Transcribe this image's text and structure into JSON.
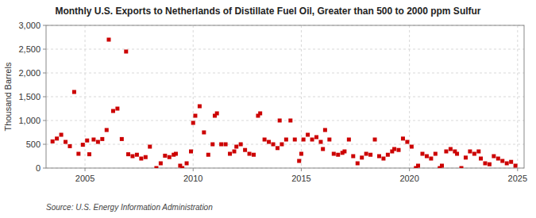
{
  "chart_data": {
    "type": "scatter",
    "title": "Monthly U.S. Exports to Netherlands of Distillate Fuel Oil, Greater than 500 to 2000 ppm Sulfur",
    "ylabel": "Thousand Barrels",
    "source": "Source: U.S. Energy Information Administration",
    "color": "#cc0000",
    "marker": "square",
    "grid": true,
    "xlim": [
      2003.2,
      2025.3
    ],
    "ylim": [
      0,
      3000
    ],
    "xticks": [
      2005,
      2010,
      2015,
      2020,
      2025
    ],
    "yticks": [
      0,
      500,
      {
        "value": 1000,
        "label": "1,000"
      },
      {
        "value": 1500,
        "label": "1,500"
      },
      {
        "value": 2000,
        "label": "2,000"
      },
      {
        "value": 2500,
        "label": "2,500"
      },
      {
        "value": 3000,
        "label": "3,000"
      }
    ],
    "x": [
      2003.5,
      2003.7,
      2003.9,
      2004.1,
      2004.3,
      2004.5,
      2004.7,
      2004.9,
      2005.1,
      2005.2,
      2005.4,
      2005.6,
      2005.8,
      2006.0,
      2006.1,
      2006.3,
      2006.5,
      2006.7,
      2006.9,
      2007.0,
      2007.2,
      2007.4,
      2007.6,
      2007.8,
      2008.0,
      2008.3,
      2008.5,
      2008.7,
      2008.9,
      2009.1,
      2009.2,
      2009.4,
      2009.5,
      2009.7,
      2009.9,
      2010.0,
      2010.1,
      2010.3,
      2010.5,
      2010.7,
      2010.9,
      2011.0,
      2011.1,
      2011.3,
      2011.5,
      2011.7,
      2011.9,
      2012.0,
      2012.2,
      2012.4,
      2012.6,
      2012.8,
      2013.0,
      2013.1,
      2013.3,
      2013.5,
      2013.7,
      2013.9,
      2014.0,
      2014.1,
      2014.3,
      2014.5,
      2014.7,
      2014.9,
      2015.0,
      2015.1,
      2015.3,
      2015.5,
      2015.7,
      2015.9,
      2016.0,
      2016.1,
      2016.3,
      2016.5,
      2016.7,
      2016.9,
      2017.0,
      2017.2,
      2017.4,
      2017.6,
      2017.8,
      2018.0,
      2018.2,
      2018.4,
      2018.6,
      2018.8,
      2019.0,
      2019.2,
      2019.3,
      2019.5,
      2019.7,
      2019.9,
      2020.1,
      2020.3,
      2020.4,
      2020.6,
      2020.8,
      2021.0,
      2021.2,
      2021.4,
      2021.5,
      2021.7,
      2021.9,
      2022.1,
      2022.2,
      2022.4,
      2022.6,
      2022.8,
      2023.0,
      2023.2,
      2023.3,
      2023.5,
      2023.7,
      2023.9,
      2024.1,
      2024.3,
      2024.5,
      2024.7,
      2024.9
    ],
    "values": [
      560,
      620,
      700,
      550,
      460,
      1600,
      300,
      490,
      580,
      290,
      600,
      550,
      610,
      800,
      2700,
      1200,
      1250,
      610,
      2450,
      290,
      250,
      280,
      200,
      230,
      450,
      0,
      100,
      260,
      230,
      280,
      300,
      50,
      0,
      100,
      350,
      950,
      1100,
      1300,
      750,
      280,
      500,
      1100,
      1150,
      500,
      500,
      300,
      350,
      450,
      500,
      380,
      300,
      280,
      1100,
      1150,
      600,
      550,
      500,
      420,
      1000,
      500,
      600,
      1000,
      600,
      150,
      300,
      600,
      700,
      600,
      650,
      550,
      400,
      800,
      600,
      300,
      280,
      320,
      350,
      600,
      250,
      100,
      220,
      300,
      280,
      600,
      250,
      200,
      280,
      350,
      400,
      380,
      620,
      550,
      450,
      0,
      50,
      300,
      250,
      200,
      300,
      0,
      50,
      350,
      400,
      350,
      300,
      0,
      220,
      350,
      300,
      350,
      200,
      100,
      80,
      250,
      200,
      150,
      100,
      130,
      50
    ]
  }
}
